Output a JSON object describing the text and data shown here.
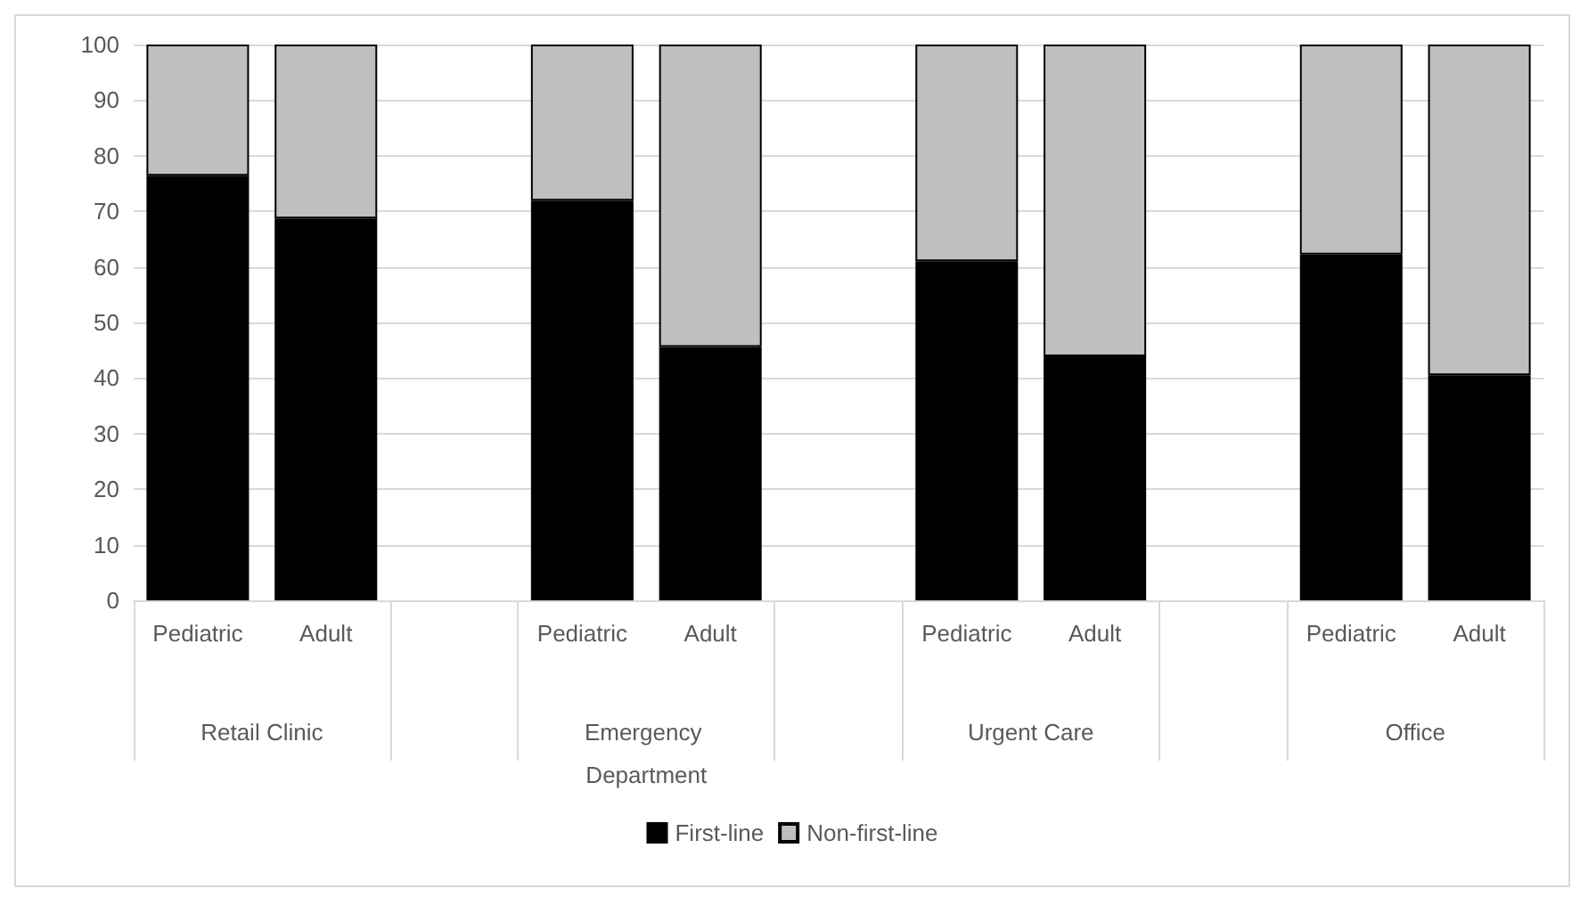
{
  "chart_data": {
    "type": "bar",
    "stacked": true,
    "categories": [
      "Pediatric",
      "Adult",
      null,
      "Pediatric",
      "Adult",
      null,
      "Pediatric",
      "Adult",
      null,
      "Pediatric",
      "Adult"
    ],
    "series": [
      {
        "name": "First-line",
        "color": "#000000",
        "values": [
          76.4,
          68.7,
          null,
          71.9,
          45.6,
          null,
          61.0,
          43.9,
          null,
          62.2,
          40.5
        ]
      },
      {
        "name": "Non-first-line",
        "color": "#bfbfbf",
        "values": [
          23.6,
          31.3,
          null,
          28.1,
          54.4,
          null,
          39.0,
          56.1,
          null,
          37.8,
          59.5
        ]
      }
    ],
    "annotations": [
      "Retail Clinic",
      "Emergency Department",
      "Urgent Care",
      "Office"
    ],
    "ylim": [
      0,
      100
    ],
    "yticks": [
      0,
      10,
      20,
      30,
      40,
      50,
      60,
      70,
      80,
      90,
      100
    ],
    "grid": "y",
    "legend": "bottom"
  }
}
